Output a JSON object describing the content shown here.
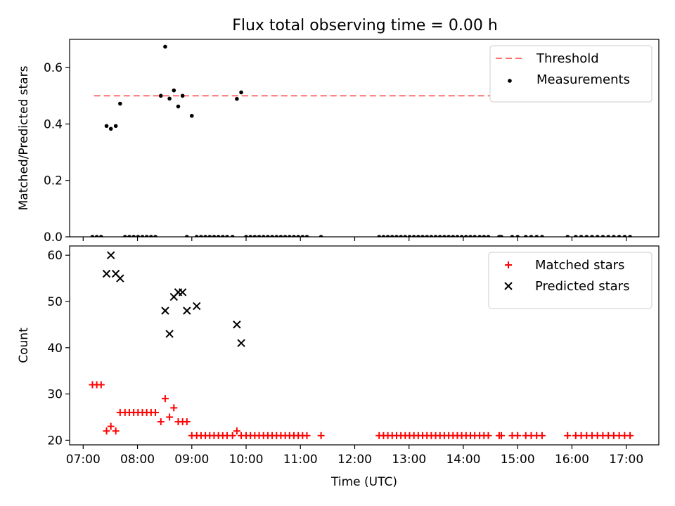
{
  "chart_data": [
    {
      "type": "scatter",
      "title": "Flux total observing time = 0.00 h",
      "xlabel": "",
      "ylabel": "Matched/Predicted stars",
      "ylim": [
        0,
        0.7
      ],
      "yticks": [
        0.0,
        0.2,
        0.4,
        0.6
      ],
      "ytick_labels": [
        "0.0",
        "0.2",
        "0.4",
        "0.6"
      ],
      "xlim": [
        6.75,
        17.6
      ],
      "xticks": [
        7,
        8,
        9,
        10,
        11,
        12,
        13,
        14,
        15,
        16,
        17
      ],
      "legend": "top-right",
      "threshold": {
        "name": "Threshold",
        "value": 0.5,
        "x_start": 7.2,
        "x_end": 17.05,
        "color": "#ff7070"
      },
      "series": [
        {
          "name": "Measurements",
          "color": "#000000",
          "x": [
            7.17,
            7.25,
            7.33,
            7.43,
            7.51,
            7.6,
            7.68,
            7.77,
            7.85,
            7.93,
            8.01,
            8.09,
            8.17,
            8.25,
            8.33,
            8.43,
            8.51,
            8.59,
            8.67,
            8.75,
            8.83,
            8.91,
            9.0,
            9.09,
            9.17,
            9.25,
            9.33,
            9.41,
            9.49,
            9.57,
            9.65,
            9.75,
            9.83,
            9.91,
            10.0,
            10.08,
            10.16,
            10.24,
            10.32,
            10.4,
            10.48,
            10.56,
            10.64,
            10.72,
            10.8,
            10.88,
            10.96,
            11.04,
            11.12,
            11.38,
            12.45,
            12.53,
            12.61,
            12.69,
            12.77,
            12.85,
            12.93,
            13.01,
            13.09,
            13.17,
            13.25,
            13.33,
            13.41,
            13.49,
            13.57,
            13.65,
            13.73,
            13.81,
            13.89,
            13.97,
            14.05,
            14.13,
            14.21,
            14.3,
            14.38,
            14.46,
            14.66,
            14.7,
            14.9,
            15.0,
            15.15,
            15.25,
            15.35,
            15.45,
            15.92,
            16.07,
            16.17,
            16.27,
            16.37,
            16.47,
            16.57,
            16.67,
            16.77,
            16.87,
            16.97,
            17.07
          ],
          "y": [
            0.0,
            0.0,
            0.0,
            0.393,
            0.383,
            0.393,
            0.472,
            0.0,
            0.0,
            0.0,
            0.0,
            0.0,
            0.0,
            0.0,
            0.0,
            0.5,
            0.674,
            0.49,
            0.519,
            0.462,
            0.5,
            0.0,
            0.429,
            0.0,
            0.0,
            0.0,
            0.0,
            0.0,
            0.0,
            0.0,
            0.0,
            0.0,
            0.489,
            0.512,
            0.0,
            0.0,
            0.0,
            0.0,
            0.0,
            0.0,
            0.0,
            0.0,
            0.0,
            0.0,
            0.0,
            0.0,
            0.0,
            0.0,
            0.0,
            0.0,
            0.0,
            0.0,
            0.0,
            0.0,
            0.0,
            0.0,
            0.0,
            0.0,
            0.0,
            0.0,
            0.0,
            0.0,
            0.0,
            0.0,
            0.0,
            0.0,
            0.0,
            0.0,
            0.0,
            0.0,
            0.0,
            0.0,
            0.0,
            0.0,
            0.0,
            0.0,
            0.0,
            0.0,
            0.0,
            0.0,
            0.0,
            0.0,
            0.0,
            0.0,
            0.0,
            0.0,
            0.0,
            0.0,
            0.0,
            0.0,
            0.0,
            0.0,
            0.0,
            0.0,
            0.0,
            0.0
          ]
        }
      ]
    },
    {
      "type": "scatter",
      "title": "",
      "xlabel": "Time (UTC)",
      "ylabel": "Count",
      "ylim": [
        19,
        62
      ],
      "yticks": [
        20,
        30,
        40,
        50,
        60
      ],
      "ytick_labels": [
        "20",
        "30",
        "40",
        "50",
        "60"
      ],
      "xlim": [
        6.75,
        17.6
      ],
      "xticks": [
        7,
        8,
        9,
        10,
        11,
        12,
        13,
        14,
        15,
        16,
        17
      ],
      "xtick_labels": [
        "07:00",
        "08:00",
        "09:00",
        "10:00",
        "11:00",
        "12:00",
        "13:00",
        "14:00",
        "15:00",
        "16:00",
        "17:00"
      ],
      "legend": "top-right",
      "series": [
        {
          "name": "Matched stars",
          "color": "#ff0000",
          "marker": "plus",
          "x": [
            7.17,
            7.25,
            7.33,
            7.43,
            7.51,
            7.6,
            7.68,
            7.77,
            7.85,
            7.93,
            8.01,
            8.09,
            8.17,
            8.25,
            8.33,
            8.43,
            8.51,
            8.59,
            8.67,
            8.75,
            8.83,
            8.91,
            9.0,
            9.09,
            9.17,
            9.25,
            9.33,
            9.41,
            9.49,
            9.57,
            9.65,
            9.75,
            9.83,
            9.91,
            10.0,
            10.08,
            10.16,
            10.24,
            10.32,
            10.4,
            10.48,
            10.56,
            10.64,
            10.72,
            10.8,
            10.88,
            10.96,
            11.04,
            11.12,
            11.38,
            12.45,
            12.53,
            12.61,
            12.69,
            12.77,
            12.85,
            12.93,
            13.01,
            13.09,
            13.17,
            13.25,
            13.33,
            13.41,
            13.49,
            13.57,
            13.65,
            13.73,
            13.81,
            13.89,
            13.97,
            14.05,
            14.13,
            14.21,
            14.3,
            14.38,
            14.46,
            14.66,
            14.7,
            14.9,
            15.0,
            15.15,
            15.25,
            15.35,
            15.45,
            15.92,
            16.07,
            16.17,
            16.27,
            16.37,
            16.47,
            16.57,
            16.67,
            16.77,
            16.87,
            16.97,
            17.07
          ],
          "y": [
            32,
            32,
            32,
            22,
            23,
            22,
            26,
            26,
            26,
            26,
            26,
            26,
            26,
            26,
            26,
            24,
            29,
            25,
            27,
            24,
            24,
            24,
            21,
            21,
            21,
            21,
            21,
            21,
            21,
            21,
            21,
            21,
            22,
            21,
            21,
            21,
            21,
            21,
            21,
            21,
            21,
            21,
            21,
            21,
            21,
            21,
            21,
            21,
            21,
            21,
            21,
            21,
            21,
            21,
            21,
            21,
            21,
            21,
            21,
            21,
            21,
            21,
            21,
            21,
            21,
            21,
            21,
            21,
            21,
            21,
            21,
            21,
            21,
            21,
            21,
            21,
            21,
            21,
            21,
            21,
            21,
            21,
            21,
            21,
            21,
            21,
            21,
            21,
            21,
            21,
            21,
            21,
            21,
            21,
            21,
            21
          ]
        },
        {
          "name": "Predicted stars",
          "color": "#000000",
          "marker": "x",
          "x": [
            7.43,
            7.51,
            7.6,
            7.68,
            8.51,
            8.59,
            8.67,
            8.75,
            8.83,
            8.91,
            9.09,
            9.83,
            9.91
          ],
          "y": [
            56,
            60,
            56,
            55,
            48,
            43,
            51,
            52,
            52,
            48,
            49,
            45,
            41
          ]
        }
      ]
    }
  ]
}
